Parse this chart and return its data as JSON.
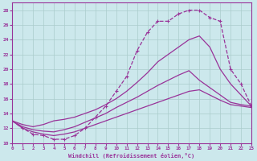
{
  "xlabel": "Windchill (Refroidissement éolien,°C)",
  "background_color": "#cce8ec",
  "grid_color": "#aacccc",
  "line_color": "#993399",
  "xlim": [
    0,
    23
  ],
  "ylim": [
    10,
    29
  ],
  "xtick_vals": [
    0,
    1,
    2,
    3,
    4,
    5,
    6,
    7,
    8,
    9,
    10,
    11,
    12,
    13,
    14,
    15,
    16,
    17,
    18,
    19,
    20,
    21,
    22,
    23
  ],
  "ytick_vals": [
    10,
    12,
    14,
    16,
    18,
    20,
    22,
    24,
    26,
    28
  ],
  "curve1_x": [
    0,
    1,
    2,
    3,
    4,
    5,
    6,
    7,
    8,
    9,
    10,
    11,
    12,
    13,
    14,
    15,
    16,
    17,
    18,
    19,
    20,
    21,
    22,
    23
  ],
  "curve1_y": [
    13,
    12,
    11.2,
    11,
    10.5,
    10.5,
    11,
    12,
    13.5,
    15,
    17,
    19,
    22.5,
    25,
    26.5,
    26.5,
    27.5,
    28,
    28,
    27,
    26.5,
    20,
    18,
    15
  ],
  "curve2_x": [
    0,
    1,
    2,
    3,
    4,
    5,
    6,
    7,
    8,
    9,
    10,
    11,
    12,
    13,
    14,
    15,
    16,
    17,
    18,
    19,
    20,
    21,
    22,
    23
  ],
  "curve2_y": [
    13,
    12.5,
    12.2,
    12.5,
    13,
    13.2,
    13.5,
    14,
    14.5,
    15.2,
    16,
    17,
    18.2,
    19.5,
    21,
    22,
    23,
    24,
    24.5,
    23,
    20,
    18,
    16.5,
    15
  ],
  "curve3_x": [
    0,
    1,
    2,
    3,
    4,
    5,
    6,
    7,
    8,
    9,
    10,
    11,
    12,
    13,
    14,
    15,
    16,
    17,
    18,
    19,
    20,
    21,
    22,
    23
  ],
  "curve3_y": [
    13,
    12.2,
    11.8,
    11.6,
    11.5,
    11.8,
    12.2,
    12.8,
    13.4,
    14,
    14.8,
    15.5,
    16.2,
    17,
    17.8,
    18.5,
    19.2,
    19.8,
    18.5,
    17.5,
    16.5,
    15.5,
    15.2,
    15
  ],
  "curve4_x": [
    0,
    1,
    2,
    3,
    4,
    5,
    6,
    7,
    8,
    9,
    10,
    11,
    12,
    13,
    14,
    15,
    16,
    17,
    18,
    19,
    20,
    21,
    22,
    23
  ],
  "curve4_y": [
    13,
    12,
    11.5,
    11.2,
    11,
    11.2,
    11.5,
    12,
    12.5,
    13,
    13.5,
    14,
    14.5,
    15,
    15.5,
    16,
    16.5,
    17,
    17.2,
    16.5,
    15.8,
    15.2,
    15,
    14.8
  ]
}
